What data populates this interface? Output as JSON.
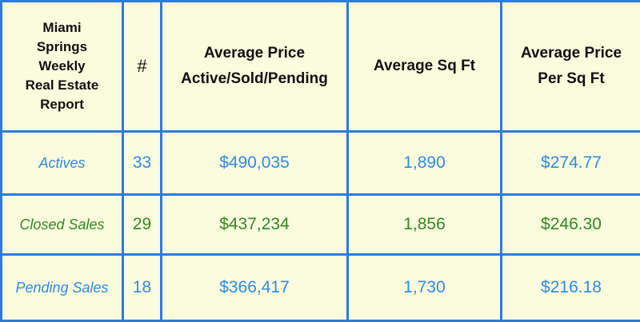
{
  "header": {
    "title_lines": [
      "Miami",
      "Springs",
      "Weekly",
      "Real Estate",
      "Report"
    ],
    "count": "#",
    "avg_price_lines": [
      "Average Price",
      "Active/Sold/Pending"
    ],
    "avg_sqft": "Average Sq Ft",
    "avg_ppsf_lines": [
      "Average Price",
      "Per Sq Ft"
    ]
  },
  "rows": [
    {
      "label": "Actives",
      "count": "33",
      "avg_price": "$490,035",
      "avg_sqft": "1,890",
      "ppsf": "$274.77",
      "color": "#2e8be8"
    },
    {
      "label": "Closed Sales",
      "count": "29",
      "avg_price": "$437,234",
      "avg_sqft": "1,856",
      "ppsf": "$246.30",
      "color": "#2f8a1f"
    },
    {
      "label": "Pending Sales",
      "count": "18",
      "avg_price": "$366,417",
      "avg_sqft": "1,730",
      "ppsf": "$216.18",
      "color": "#2e8be8"
    }
  ],
  "colors": {
    "border": "#2e7be0",
    "background": "#fbfcde"
  }
}
